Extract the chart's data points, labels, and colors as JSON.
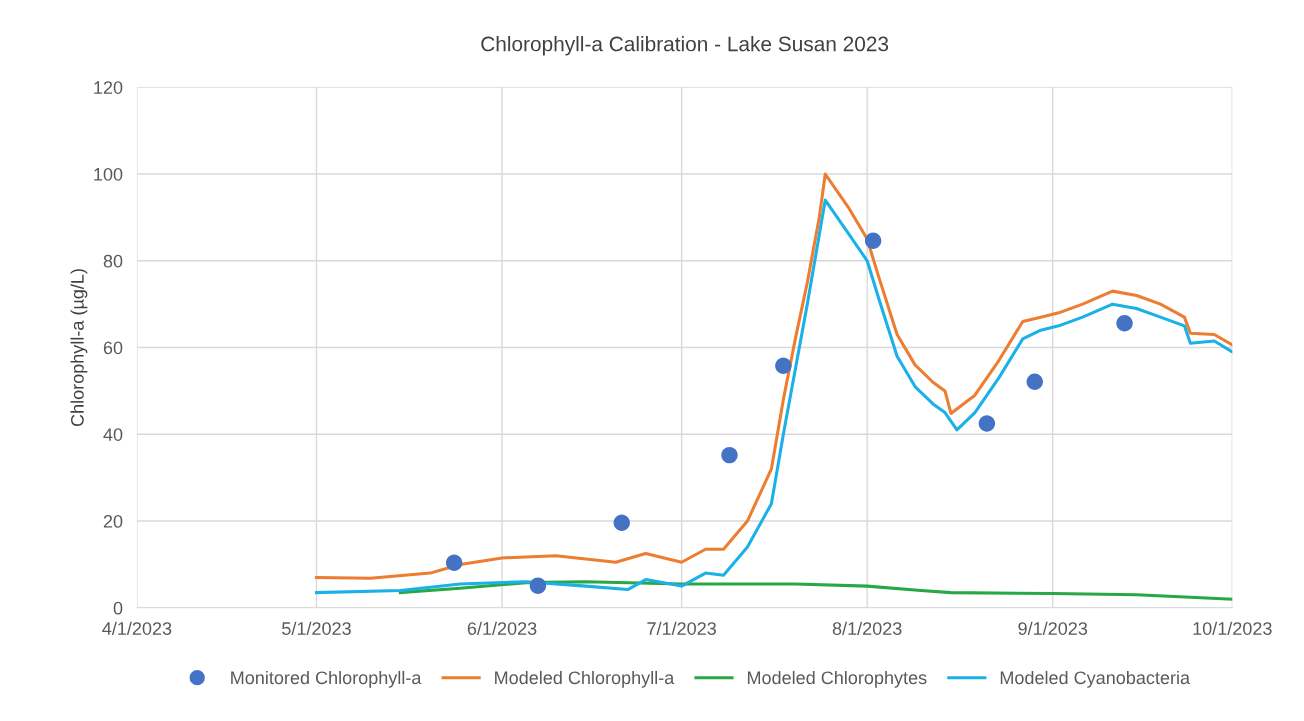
{
  "chart_data": {
    "type": "line",
    "title": "Chlorophyll-a Calibration - Lake Susan 2023",
    "ylabel": "Chlorophyll-a (µg/L)",
    "xlim": [
      "2023-04-01",
      "2023-10-01"
    ],
    "xticks": [
      {
        "value": "2023-04-01",
        "label": "4/1/2023"
      },
      {
        "value": "2023-05-01",
        "label": "5/1/2023"
      },
      {
        "value": "2023-06-01",
        "label": "6/1/2023"
      },
      {
        "value": "2023-07-01",
        "label": "7/1/2023"
      },
      {
        "value": "2023-08-01",
        "label": "8/1/2023"
      },
      {
        "value": "2023-09-01",
        "label": "9/1/2023"
      },
      {
        "value": "2023-10-01",
        "label": "10/1/2023"
      }
    ],
    "ylim": [
      0,
      120
    ],
    "yticks": [
      0,
      20,
      40,
      60,
      80,
      100,
      120
    ],
    "grid": true,
    "legend": "bottom",
    "series": [
      {
        "name": "Monitored Chlorophyll-a",
        "type": "scatter",
        "marker": "circle",
        "color": "#4472c4",
        "x": [
          "2023-05-24",
          "2023-06-07",
          "2023-06-21",
          "2023-07-09",
          "2023-07-18",
          "2023-08-02",
          "2023-08-21",
          "2023-08-29",
          "2023-09-13"
        ],
        "values": [
          10.4,
          5.1,
          19.6,
          35.2,
          55.8,
          84.6,
          42.5,
          52.1,
          65.6
        ]
      },
      {
        "name": "Modeled Chlorophyll-a",
        "color": "#ed7d31",
        "x": [
          "2023-05-01",
          "2023-05-10",
          "2023-05-20",
          "2023-05-25",
          "2023-06-01",
          "2023-06-10",
          "2023-06-20",
          "2023-06-25",
          "2023-07-01",
          "2023-07-05",
          "2023-07-08",
          "2023-07-12",
          "2023-07-16",
          "2023-07-18",
          "2023-07-20",
          "2023-07-22",
          "2023-07-24",
          "2023-07-25",
          "2023-07-27",
          "2023-07-29",
          "2023-08-01",
          "2023-08-03",
          "2023-08-06",
          "2023-08-09",
          "2023-08-12",
          "2023-08-14",
          "2023-08-15",
          "2023-08-19",
          "2023-08-23",
          "2023-08-27",
          "2023-08-30",
          "2023-09-02",
          "2023-09-06",
          "2023-09-11",
          "2023-09-15",
          "2023-09-19",
          "2023-09-23",
          "2023-09-24",
          "2023-09-28",
          "2023-10-01"
        ],
        "values": [
          7,
          6.8,
          8,
          10,
          11.5,
          12,
          10.5,
          12.5,
          10.5,
          13.5,
          13.5,
          20,
          32,
          48,
          62,
          75,
          90,
          100,
          96,
          92,
          85,
          76,
          63,
          56,
          52,
          50,
          44.8,
          49,
          57,
          66,
          67,
          68,
          70,
          73,
          72,
          70,
          67,
          63.3,
          63,
          60.6
        ]
      },
      {
        "name": "Modeled Chlorophytes",
        "color": "#27a844",
        "x": [
          "2023-05-15",
          "2023-05-25",
          "2023-06-05",
          "2023-06-15",
          "2023-07-01",
          "2023-07-20",
          "2023-08-01",
          "2023-08-10",
          "2023-08-15",
          "2023-09-01",
          "2023-09-15",
          "2023-10-01"
        ],
        "values": [
          3.5,
          4.5,
          5.8,
          6,
          5.5,
          5.5,
          5,
          4,
          3.5,
          3.3,
          3,
          2
        ]
      },
      {
        "name": "Modeled Cyanobacteria",
        "color": "#1ab0e8",
        "x": [
          "2023-05-01",
          "2023-05-15",
          "2023-05-25",
          "2023-06-05",
          "2023-06-15",
          "2023-06-22",
          "2023-06-25",
          "2023-07-01",
          "2023-07-05",
          "2023-07-08",
          "2023-07-12",
          "2023-07-16",
          "2023-07-18",
          "2023-07-20",
          "2023-07-22",
          "2023-07-24",
          "2023-07-25",
          "2023-07-27",
          "2023-07-29",
          "2023-08-01",
          "2023-08-03",
          "2023-08-06",
          "2023-08-09",
          "2023-08-12",
          "2023-08-14",
          "2023-08-16",
          "2023-08-19",
          "2023-08-23",
          "2023-08-27",
          "2023-08-30",
          "2023-09-02",
          "2023-09-06",
          "2023-09-11",
          "2023-09-15",
          "2023-09-19",
          "2023-09-23",
          "2023-09-24",
          "2023-09-28",
          "2023-10-01"
        ],
        "values": [
          3.5,
          4,
          5.5,
          6,
          5,
          4.2,
          6.5,
          5,
          8,
          7.5,
          14,
          24,
          40,
          55,
          70,
          86,
          94,
          90,
          86,
          80,
          71,
          58,
          51,
          47,
          45,
          41,
          45,
          53,
          62,
          64,
          65,
          67,
          70,
          69,
          67,
          65,
          61,
          61.5,
          59
        ]
      }
    ]
  }
}
